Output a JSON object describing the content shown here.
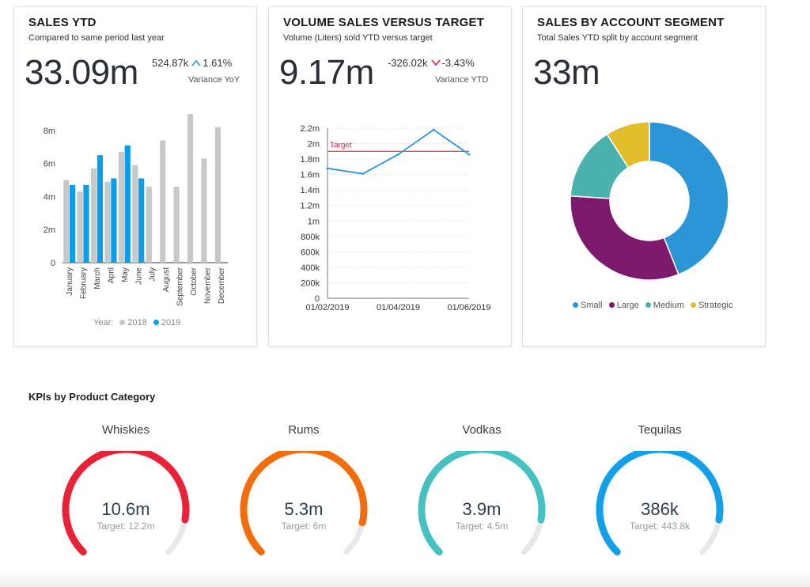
{
  "sales_ytd": {
    "title": "SALES YTD",
    "subtitle": "Compared to same period last year",
    "value": "33.09m",
    "variance_value": "524.87k",
    "variance_pct": "1.61%",
    "variance_label": "Variance YoY",
    "legend_prefix": "Year:",
    "legend": [
      {
        "label": "2018",
        "color": "#c8c8c8"
      },
      {
        "label": "2019",
        "color": "#0a9de8"
      }
    ]
  },
  "volume_sales": {
    "title": "VOLUME SALES VERSUS TARGET",
    "subtitle": "Volume (Liters) sold YTD versus target",
    "value": "9.17m",
    "variance_value": "-326.02k",
    "variance_pct": "-3.43%",
    "variance_label": "Variance YTD"
  },
  "segment": {
    "title": "SALES BY ACCOUNT SEGMENT",
    "subtitle": "Total Sales YTD split by account segment",
    "value": "33m",
    "legend": [
      {
        "label": "Small",
        "color": "#2a96d6"
      },
      {
        "label": "Large",
        "color": "#7d1a6e"
      },
      {
        "label": "Medium",
        "color": "#4bb1ad"
      },
      {
        "label": "Strategic",
        "color": "#e2bd2c"
      }
    ]
  },
  "kpi_section_title": "KPIs by Product Category",
  "kpis": [
    {
      "name": "Whiskies",
      "value": "10.6m",
      "target_label": "Target: 12.2m",
      "progress": 0.87,
      "color": "#ea2238"
    },
    {
      "name": "Rums",
      "value": "5.3m",
      "target_label": "Target: 6m",
      "progress": 0.88,
      "color": "#f46d0c"
    },
    {
      "name": "Vodkas",
      "value": "3.9m",
      "target_label": "Target: 4.5m",
      "progress": 0.87,
      "color": "#44c1c0"
    },
    {
      "name": "Tequilas",
      "value": "386k",
      "target_label": "Target: 443.8k",
      "progress": 0.87,
      "color": "#12a1e8"
    }
  ],
  "chart_data": [
    {
      "type": "bar",
      "categories": [
        "January",
        "February",
        "March",
        "April",
        "May",
        "June",
        "July",
        "August",
        "September",
        "October",
        "November",
        "December"
      ],
      "series": [
        {
          "name": "2018",
          "color": "#c8c8c8",
          "values": [
            5.0,
            4.3,
            5.7,
            4.9,
            6.7,
            5.9,
            4.6,
            7.4,
            4.6,
            9.0,
            6.3,
            8.2
          ]
        },
        {
          "name": "2019",
          "color": "#0a9de8",
          "values": [
            4.7,
            4.7,
            6.5,
            5.1,
            7.1,
            5.1,
            null,
            null,
            null,
            null,
            null,
            null
          ]
        }
      ],
      "ylim": [
        0,
        9
      ],
      "yticks": [
        0,
        2,
        4,
        6,
        8
      ],
      "ytick_labels": [
        "0",
        "2m",
        "4m",
        "6m",
        "8m"
      ]
    },
    {
      "type": "line",
      "x": [
        "01/02/2019",
        "01/03/2019",
        "01/04/2019",
        "01/05/2019",
        "01/06/2019"
      ],
      "series": [
        {
          "color": "#2a96e0",
          "values": [
            1680000,
            1610000,
            1860000,
            2180000,
            1860000
          ]
        }
      ],
      "target": {
        "label": "Target",
        "value": 1900000,
        "color": "#e84a5f"
      },
      "ylim": [
        0,
        2200000
      ],
      "yticks": [
        0,
        200000,
        400000,
        600000,
        800000,
        1000000,
        1200000,
        1400000,
        1600000,
        1800000,
        2000000,
        2200000
      ],
      "ytick_labels": [
        "0",
        "200k",
        "400k",
        "600k",
        "800k",
        "1m",
        "1.2m",
        "1.4m",
        "1.6m",
        "1.8m",
        "2m",
        "2.2m"
      ],
      "xtick_labels": [
        {
          "i": 0,
          "label": "01/02/2019"
        },
        {
          "i": 2,
          "label": "01/04/2019"
        },
        {
          "i": 4,
          "label": "01/06/2019"
        }
      ],
      "grid": true
    },
    {
      "type": "pie",
      "donut": true,
      "labels": [
        "Small",
        "Large",
        "Medium",
        "Strategic"
      ],
      "values": [
        44,
        32,
        15,
        9
      ]
    }
  ]
}
